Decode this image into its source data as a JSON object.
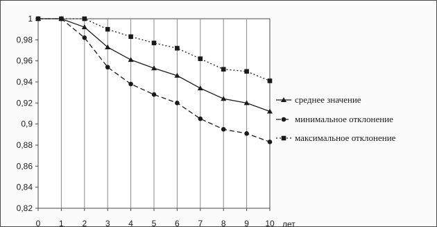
{
  "chart_data": {
    "type": "line",
    "x": [
      0,
      1,
      2,
      3,
      4,
      5,
      6,
      7,
      8,
      9,
      10
    ],
    "x_ticks": [
      "0",
      "1",
      "2",
      "3",
      "4",
      "5",
      "6",
      "7",
      "8",
      "9",
      "10"
    ],
    "xlabel": "лет",
    "ylim": [
      0.82,
      1.0
    ],
    "y_ticks": [
      "0,82",
      "0,84",
      "0,86",
      "0,88",
      "0,9",
      "0,92",
      "0,94",
      "0,96",
      "0,98",
      "1"
    ],
    "grid": "vertical",
    "legend_position": "right",
    "series": [
      {
        "name": "среднее значение",
        "marker": "triangle",
        "line_style": "solid",
        "color": "#1a1a1a",
        "values": [
          1.0,
          1.0,
          0.992,
          0.973,
          0.961,
          0.953,
          0.946,
          0.934,
          0.924,
          0.92,
          0.912
        ]
      },
      {
        "name": "минимальное отклонение",
        "marker": "circle",
        "line_style": "dashed",
        "color": "#1a1a1a",
        "values": [
          1.0,
          1.0,
          0.982,
          0.954,
          0.938,
          0.928,
          0.92,
          0.905,
          0.895,
          0.891,
          0.883
        ]
      },
      {
        "name": "максимальное отклонение",
        "marker": "square",
        "line_style": "dotted",
        "color": "#1a1a1a",
        "values": [
          1.0,
          1.0,
          1.0,
          0.99,
          0.983,
          0.977,
          0.972,
          0.962,
          0.952,
          0.95,
          0.941
        ]
      }
    ]
  }
}
